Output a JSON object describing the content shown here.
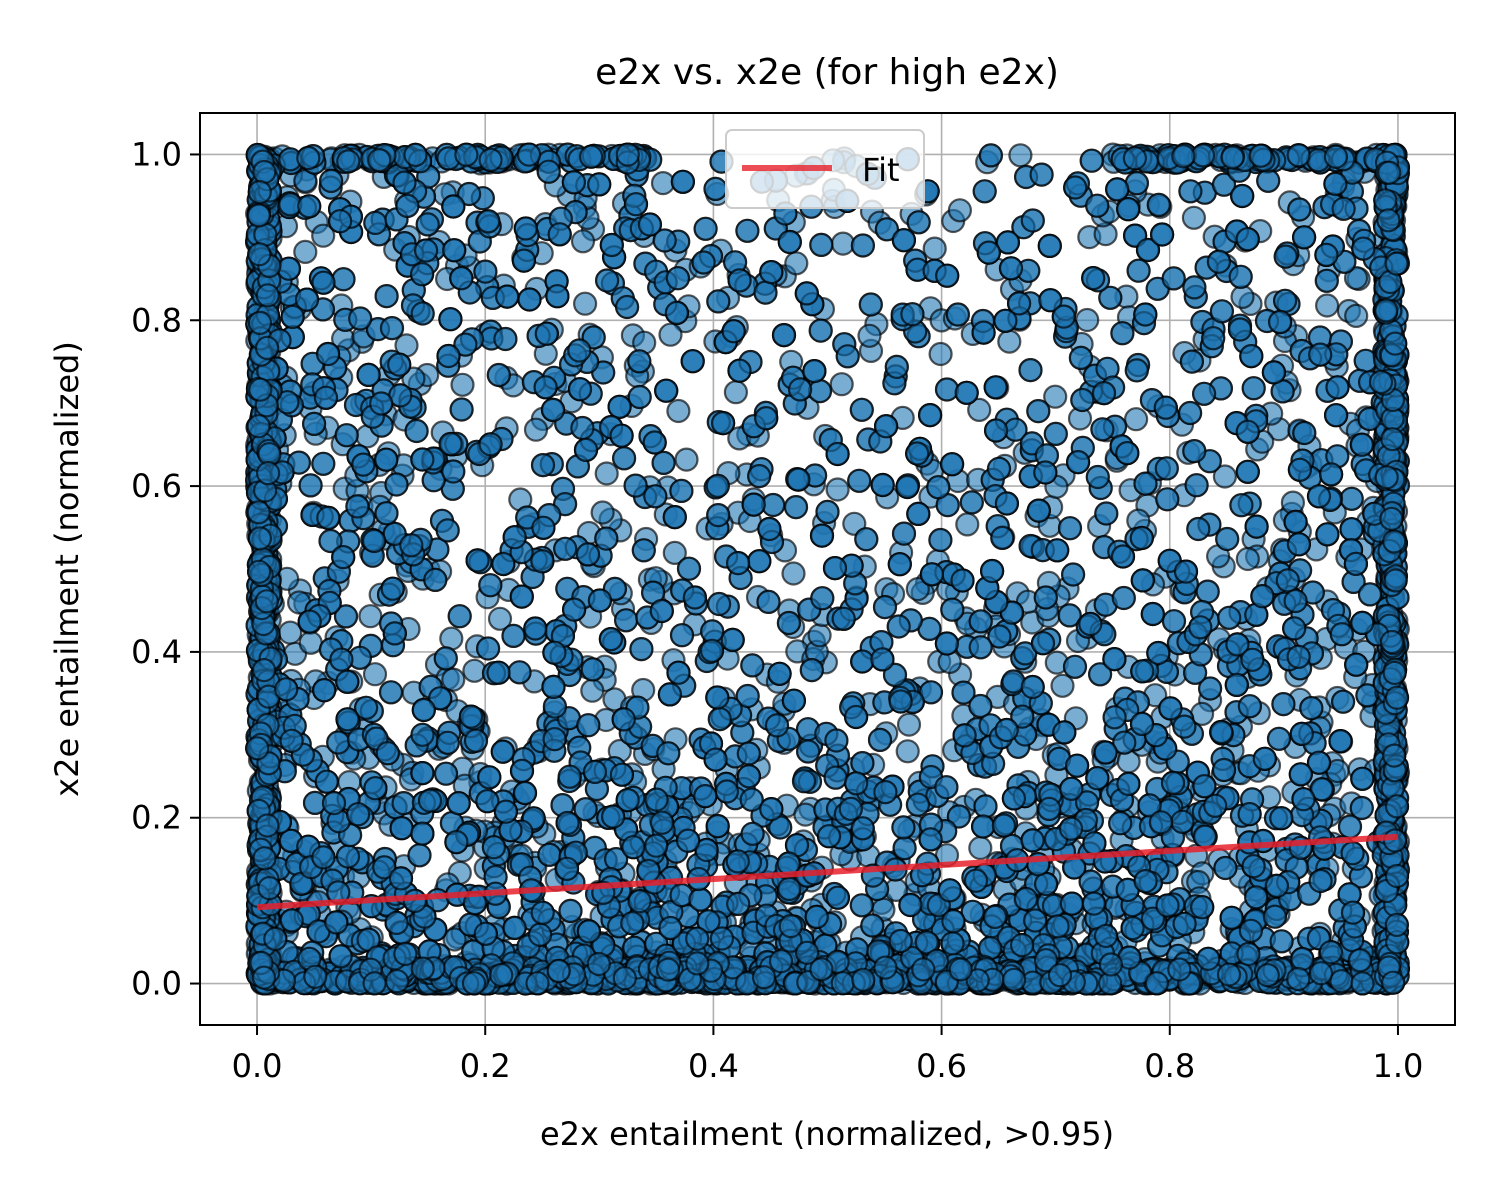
{
  "chart_data": {
    "type": "scatter",
    "title": "e2x vs. x2e (for high e2x)",
    "xlabel": "e2x entailment (normalized, >0.95)",
    "ylabel": "x2e entailment (normalized)",
    "xlim": [
      -0.05,
      1.05
    ],
    "ylim": [
      -0.05,
      1.05
    ],
    "xticks": [
      "0.0",
      "0.2",
      "0.4",
      "0.6",
      "0.8",
      "1.0"
    ],
    "yticks": [
      "0.0",
      "0.2",
      "0.4",
      "0.6",
      "0.8",
      "1.0"
    ],
    "grid": true,
    "legend": {
      "placement": "upper center",
      "entries": [
        "Fit"
      ]
    },
    "series": [
      {
        "kind": "scatter",
        "approx_count": 9000,
        "x_range": [
          0.0,
          1.0
        ],
        "y_range": [
          0.0,
          1.0
        ],
        "color": "#1f77b4",
        "edge_color": "#000000",
        "alpha": 0.6,
        "density_note": "densest near y=0 and along x=0 and x=1; clusters along y=1 near both ends"
      },
      {
        "name": "Fit",
        "kind": "line",
        "color": "#e8202a",
        "x": [
          0.0,
          1.0
        ],
        "y": [
          0.092,
          0.177
        ]
      }
    ]
  }
}
